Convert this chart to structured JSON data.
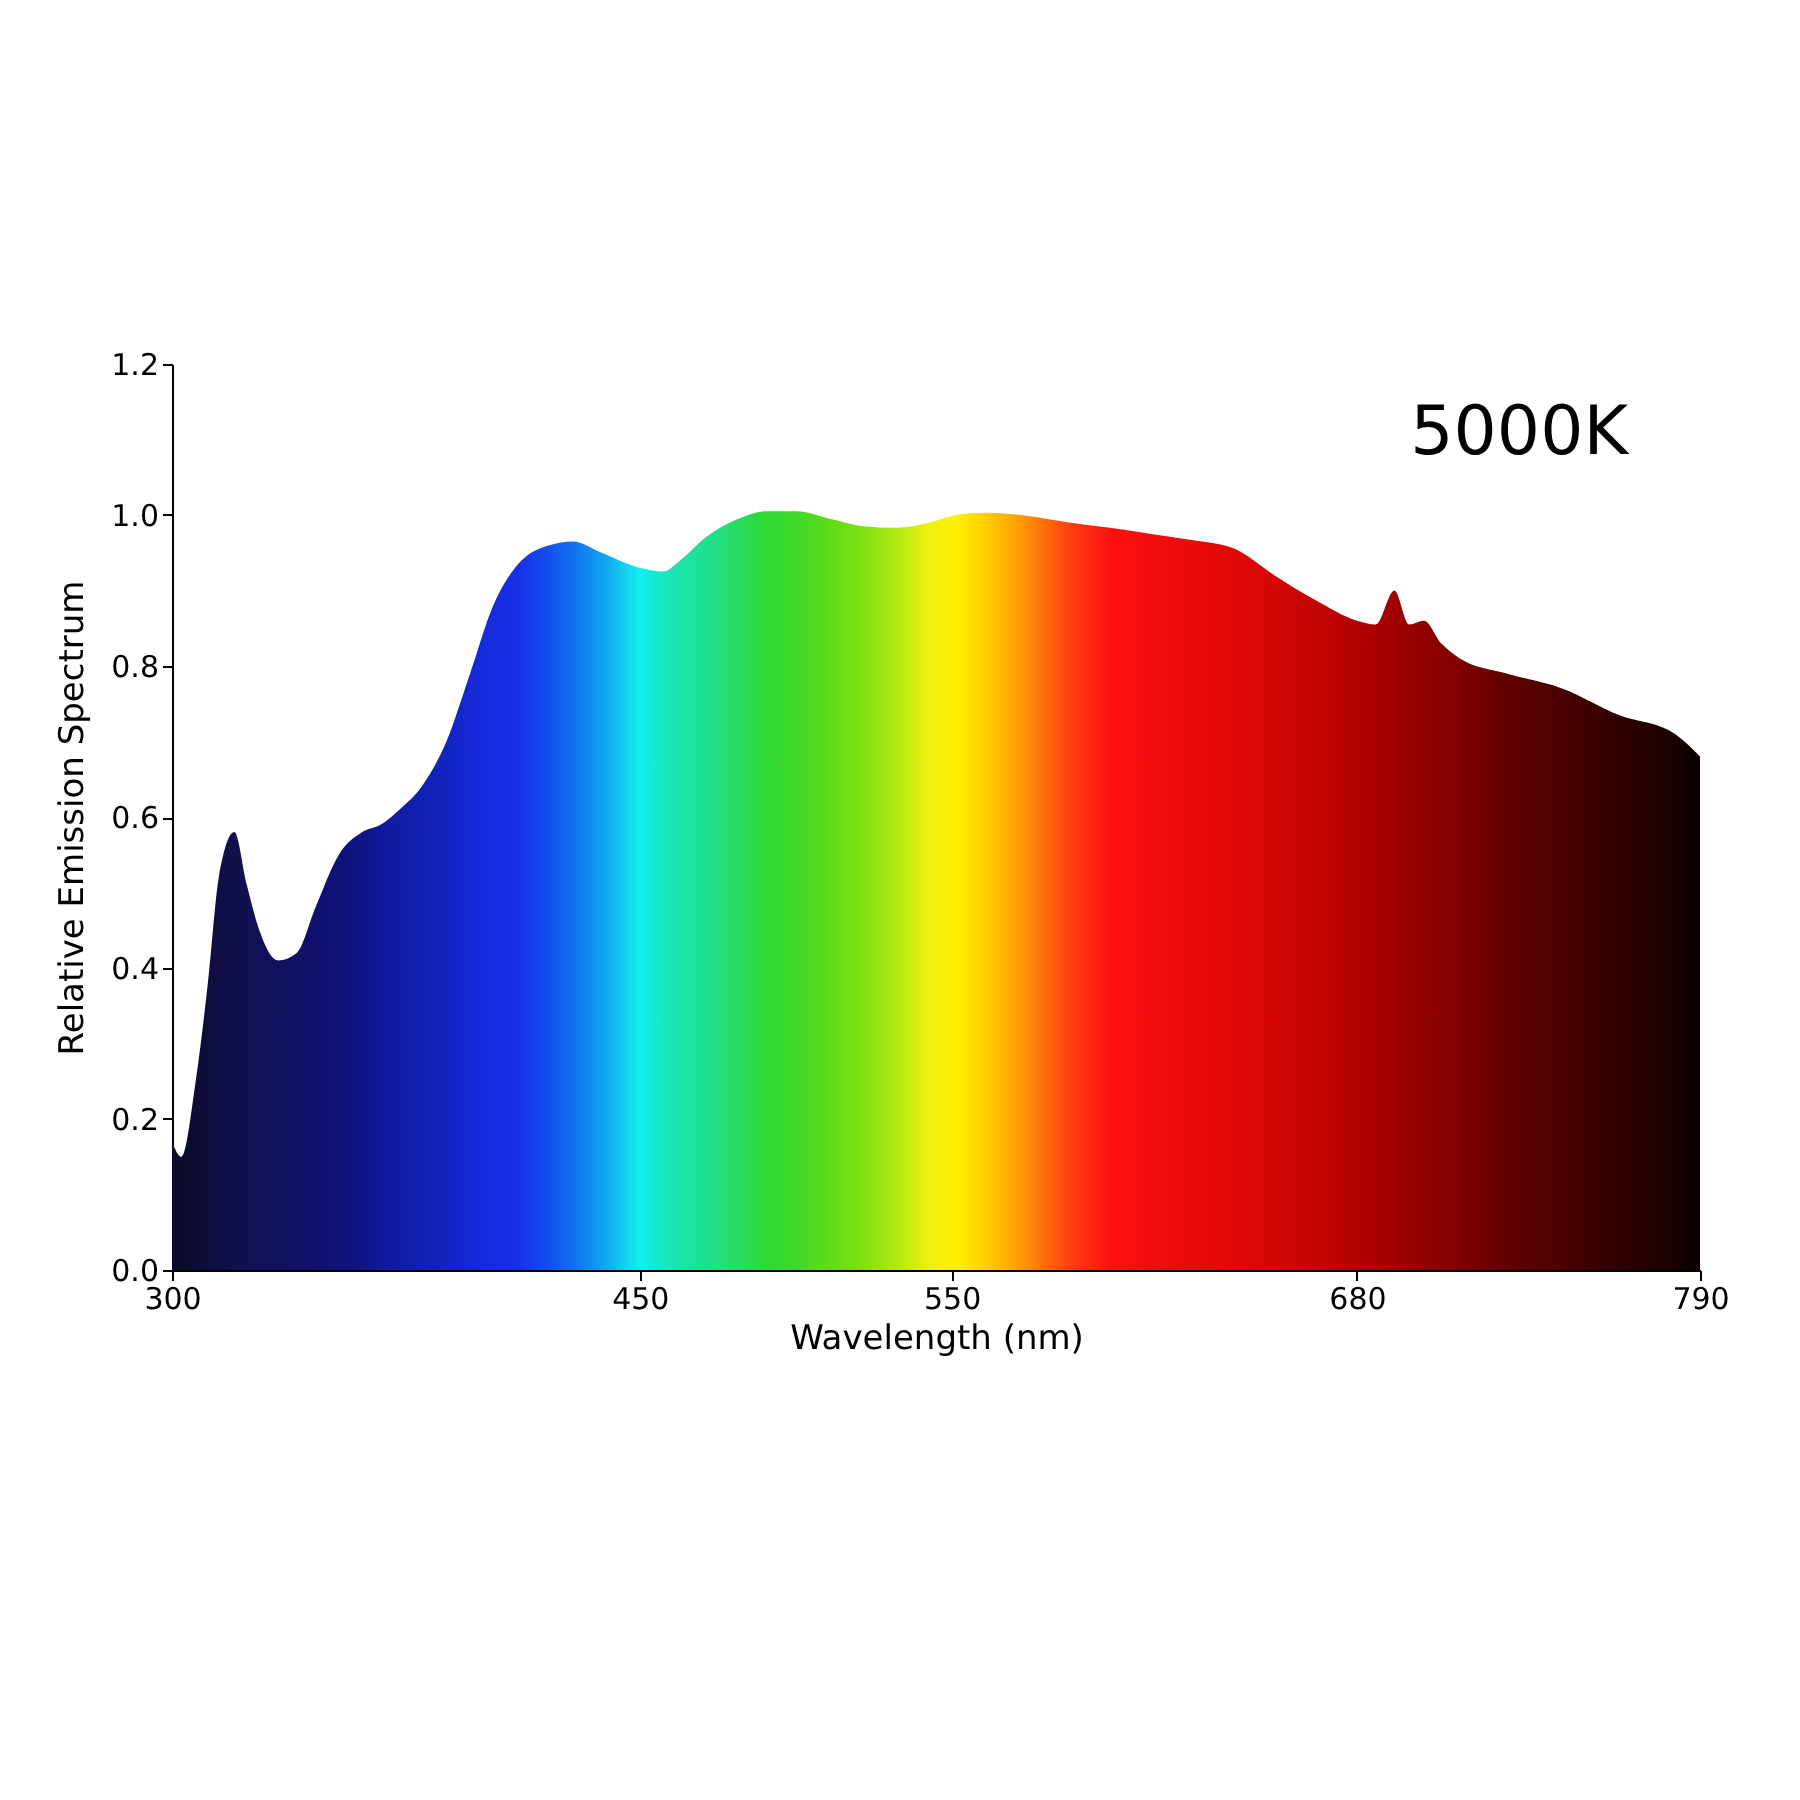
{
  "chart_data": {
    "type": "area",
    "xlabel": "Wavelength (nm)",
    "ylabel": "Relative Emission Spectrum",
    "annotations": [
      "5000K"
    ],
    "x": [
      300,
      303,
      307.6,
      311.5,
      315,
      320,
      324,
      328,
      334,
      340,
      346,
      353.5,
      361,
      367,
      373,
      380,
      388,
      395.6,
      403,
      411,
      421,
      428.5,
      437.8,
      450,
      457.5,
      463,
      471,
      481.6,
      490.7,
      500.3,
      511,
      521.6,
      532,
      543,
      551.3,
      561,
      574,
      587.6,
      600.8,
      614,
      627,
      640.4,
      653.6,
      666.8,
      680,
      686,
      692,
      696.7,
      701.5,
      707,
      713,
      728,
      746,
      764,
      782,
      790
    ],
    "series": [
      {
        "values": [
          0.17,
          0.15,
          0.25,
          0.38,
          0.52,
          0.58,
          0.51,
          0.45,
          0.41,
          0.42,
          0.48,
          0.55,
          0.58,
          0.59,
          0.61,
          0.64,
          0.7,
          0.79,
          0.88,
          0.935,
          0.96,
          0.965,
          0.95,
          0.93,
          0.925,
          0.94,
          0.97,
          0.995,
          1.005,
          1.005,
          0.995,
          0.985,
          0.983,
          0.99,
          1.0,
          1.003,
          0.999,
          0.99,
          0.983,
          0.975,
          0.967,
          0.956,
          0.92,
          0.887,
          0.86,
          0.855,
          0.9,
          0.855,
          0.86,
          0.83,
          0.81,
          0.79,
          0.77,
          0.735,
          0.71,
          0.68
        ],
        "colors": [
          "#0a0a28",
          "#0a0a2c",
          "#0c0c34",
          "#0e0e3c",
          "#0f0f44",
          "#10104c",
          "#101052",
          "#101058",
          "#10105e",
          "#101066",
          "#10106e",
          "#101278",
          "#101488",
          "#101898",
          "#101ca4",
          "#1020b0",
          "#1224c0",
          "#1428d4",
          "#152ce0",
          "#1530e8",
          "#1450ec",
          "#1070f0",
          "#10a0f0",
          "#10f0f0",
          "#18e8c0",
          "#1ce4a8",
          "#20e090",
          "#28dc60",
          "#30d830",
          "#40d828",
          "#60dc18",
          "#80e010",
          "#b0e810",
          "#f0f010",
          "#fff000",
          "#ffd000",
          "#ff9008",
          "#ff4010",
          "#ff1010",
          "#f40c0c",
          "#ea0a0a",
          "#e00808",
          "#d40606",
          "#c40404",
          "#b00000",
          "#a80000",
          "#a00000",
          "#980000",
          "#900000",
          "#880000",
          "#800000",
          "#600000",
          "#4a0000",
          "#300000",
          "#180000",
          "#0a0000"
        ]
      }
    ],
    "xlim": [
      300,
      790
    ],
    "xticks": [
      300,
      450,
      550,
      680,
      790
    ],
    "ylim": [
      0,
      1.2
    ],
    "yticks": [
      {
        "value": 0,
        "label": "0.0"
      },
      0.2,
      0.4,
      0.6,
      0.8,
      {
        "value": 1,
        "label": "1.0"
      },
      1.2
    ],
    "grid": false
  }
}
